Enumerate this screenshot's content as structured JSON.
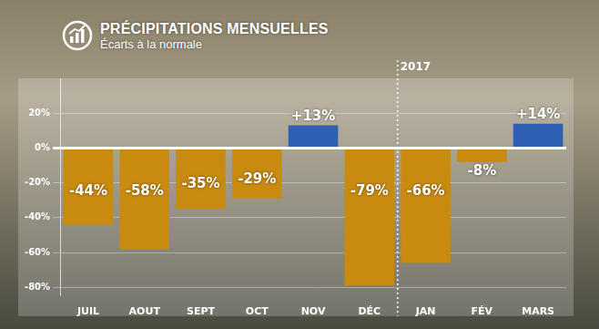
{
  "chart_data": {
    "type": "bar",
    "title": "PRÉCIPITATIONS MENSUELLES",
    "subtitle": "Écarts à la normale",
    "categories": [
      "JUIL",
      "AOUT",
      "SEPT",
      "OCT",
      "NOV",
      "DÉC",
      "JAN",
      "FÉV",
      "MARS"
    ],
    "values": [
      -44,
      -58,
      -35,
      -29,
      13,
      -79,
      -66,
      -8,
      14
    ],
    "value_labels": [
      "-44%",
      "-58%",
      "-35%",
      "-29%",
      "+13%",
      "-79%",
      "-66%",
      "-8%",
      "+14%"
    ],
    "colors": [
      "#c98a10",
      "#c98a10",
      "#c98a10",
      "#c98a10",
      "#2f5fb0",
      "#c98a10",
      "#c98a10",
      "#c98a10",
      "#2f5fb0"
    ],
    "data_labels": true,
    "ylim": [
      -85,
      40
    ],
    "yticks": [
      {
        "value": 20,
        "label": "20%"
      },
      {
        "value": 0,
        "label": "0%"
      },
      {
        "value": -20,
        "label": "-20%"
      },
      {
        "value": -40,
        "label": "-40%"
      },
      {
        "value": -60,
        "label": "-60%"
      },
      {
        "value": -80,
        "label": "-80%"
      }
    ],
    "grid": true,
    "annotations": [
      {
        "text": "2017",
        "after": "DÉC"
      }
    ]
  }
}
